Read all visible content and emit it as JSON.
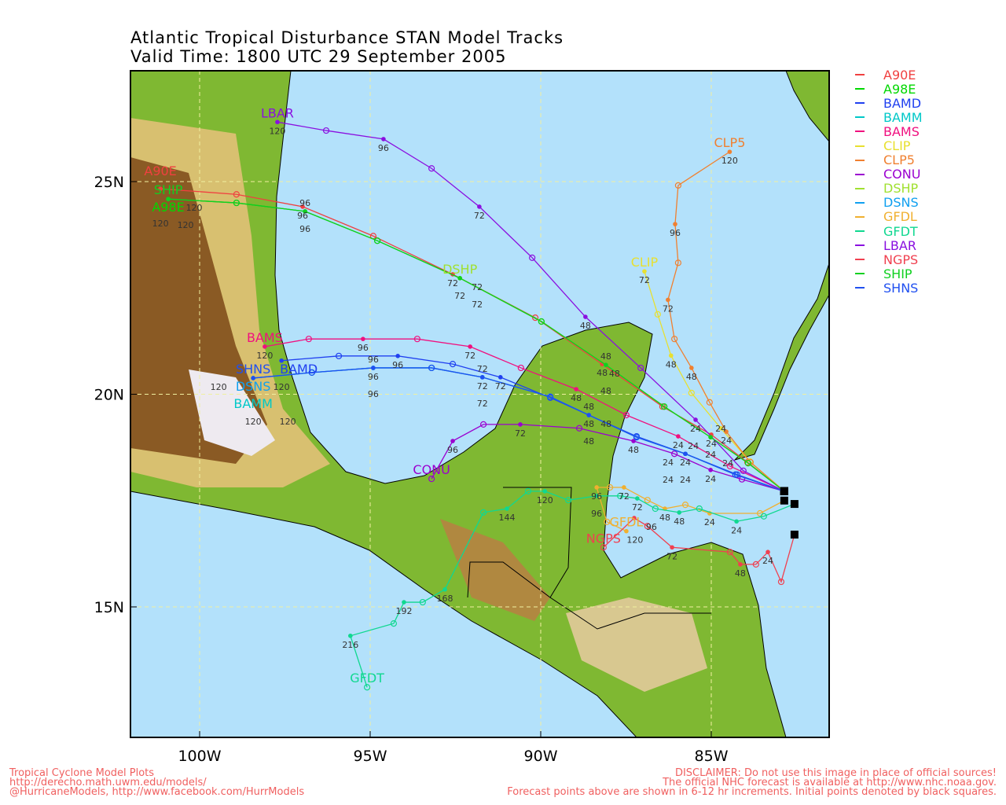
{
  "title": {
    "line1": "Atlantic Tropical Disturbance STAN Model Tracks",
    "line2": "Valid Time: 1800 UTC 29 September 2005"
  },
  "axes": {
    "lon_range_w": [
      102,
      81.5
    ],
    "lat_range_n": [
      12,
      27.6
    ],
    "lon_ticks": [
      {
        "value": 100,
        "label": "100W"
      },
      {
        "value": 95,
        "label": "95W"
      },
      {
        "value": 90,
        "label": "90W"
      },
      {
        "value": 85,
        "label": "85W"
      }
    ],
    "lat_ticks": [
      {
        "value": 25,
        "label": "25N"
      },
      {
        "value": 20,
        "label": "20N"
      },
      {
        "value": 15,
        "label": "15N"
      }
    ],
    "grid": true
  },
  "colors": {
    "ocean": "#b3e1fb",
    "land_low": "#7fb832",
    "land_mid": "#c8d88a",
    "land_high": "#8a5a24",
    "peak": "#eeeaf0",
    "grid": "#f0f0a0"
  },
  "tracks": [
    {
      "name": "A90E",
      "color": "#f04040",
      "points": [
        [
          82.86,
          17.72
        ],
        [
          83.94,
          18.4
        ],
        [
          85.0,
          19.05
        ],
        [
          86.43,
          19.71
        ],
        [
          88.2,
          20.71
        ],
        [
          90.16,
          21.8
        ],
        [
          92.58,
          22.82
        ],
        [
          94.91,
          23.72
        ],
        [
          96.98,
          24.41
        ],
        [
          98.92,
          24.7
        ],
        [
          101.15,
          24.83
        ]
      ]
    },
    {
      "name": "A98E",
      "color": "#00d800",
      "points": [
        [
          82.86,
          17.72
        ],
        [
          83.92,
          18.38
        ],
        [
          85.02,
          18.99
        ],
        [
          86.38,
          19.71
        ],
        [
          88.09,
          20.69
        ],
        [
          89.98,
          21.71
        ],
        [
          92.37,
          22.73
        ],
        [
          94.79,
          23.61
        ],
        [
          96.91,
          24.3
        ],
        [
          98.92,
          24.5
        ],
        [
          100.92,
          24.59
        ]
      ]
    },
    {
      "name": "BAMD",
      "color": "#2040f0",
      "points": [
        [
          82.86,
          17.72
        ],
        [
          84.24,
          18.11
        ],
        [
          85.76,
          18.6
        ],
        [
          87.19,
          19.01
        ],
        [
          88.59,
          19.51
        ],
        [
          89.72,
          19.92
        ],
        [
          91.18,
          20.4
        ],
        [
          92.58,
          20.71
        ],
        [
          94.19,
          20.9
        ],
        [
          95.92,
          20.9
        ],
        [
          97.6,
          20.79
        ]
      ]
    },
    {
      "name": "BAMM",
      "color": "#00c8c8",
      "points": [
        [
          82.86,
          17.72
        ],
        [
          84.29,
          18.11
        ],
        [
          85.76,
          18.6
        ],
        [
          87.19,
          18.99
        ],
        [
          88.59,
          19.51
        ],
        [
          89.72,
          19.94
        ],
        [
          91.71,
          20.4
        ],
        [
          93.2,
          20.62
        ],
        [
          94.91,
          20.62
        ],
        [
          96.71,
          20.51
        ],
        [
          98.43,
          20.38
        ]
      ]
    },
    {
      "name": "BAMS",
      "color": "#f0107f",
      "points": [
        [
          82.86,
          17.72
        ],
        [
          84.45,
          18.31
        ],
        [
          85.97,
          19.01
        ],
        [
          87.49,
          19.51
        ],
        [
          88.96,
          20.12
        ],
        [
          90.58,
          20.62
        ],
        [
          92.07,
          21.12
        ],
        [
          93.62,
          21.3
        ],
        [
          95.21,
          21.3
        ],
        [
          96.8,
          21.3
        ],
        [
          98.09,
          21.12
        ]
      ]
    },
    {
      "name": "CLIP",
      "color": "#e8e030",
      "points": [
        [
          82.86,
          17.72
        ],
        [
          83.87,
          18.42
        ],
        [
          84.72,
          19.2
        ],
        [
          85.58,
          20.03
        ],
        [
          86.18,
          20.91
        ],
        [
          86.57,
          21.88
        ],
        [
          86.96,
          22.89
        ]
      ]
    },
    {
      "name": "CLP5",
      "color": "#f08030",
      "points": [
        [
          82.86,
          17.72
        ],
        [
          83.85,
          18.4
        ],
        [
          84.56,
          19.12
        ],
        [
          85.05,
          19.81
        ],
        [
          85.58,
          20.62
        ],
        [
          86.08,
          21.3
        ],
        [
          86.27,
          22.22
        ],
        [
          85.97,
          23.09
        ],
        [
          86.06,
          24.0
        ],
        [
          85.97,
          24.91
        ],
        [
          84.46,
          25.7
        ]
      ]
    },
    {
      "name": "CONU",
      "color": "#9b00d0",
      "points": [
        [
          82.86,
          17.72
        ],
        [
          84.1,
          18.0
        ],
        [
          85.02,
          18.22
        ],
        [
          86.08,
          18.6
        ],
        [
          87.28,
          18.9
        ],
        [
          88.87,
          19.2
        ],
        [
          90.6,
          19.29
        ],
        [
          91.68,
          19.29
        ],
        [
          92.58,
          18.9
        ],
        [
          93.2,
          18.01
        ]
      ]
    },
    {
      "name": "DSHP",
      "color": "#a0e030",
      "points": [
        [
          82.86,
          17.72
        ],
        [
          83.92,
          18.38
        ],
        [
          85.02,
          18.99
        ],
        [
          86.38,
          19.71
        ],
        [
          88.09,
          20.69
        ],
        [
          89.98,
          21.71
        ],
        [
          92.37,
          22.73
        ]
      ]
    },
    {
      "name": "DSNS",
      "color": "#10a0f0",
      "points": [
        [
          82.86,
          17.72
        ],
        [
          84.29,
          18.11
        ],
        [
          85.76,
          18.6
        ],
        [
          87.19,
          18.99
        ],
        [
          88.59,
          19.51
        ],
        [
          89.72,
          19.94
        ],
        [
          91.71,
          20.4
        ],
        [
          93.2,
          20.62
        ],
        [
          94.91,
          20.62
        ],
        [
          96.71,
          20.51
        ],
        [
          98.43,
          20.38
        ]
      ]
    },
    {
      "name": "GFDL",
      "color": "#f0b030",
      "points": [
        [
          82.86,
          17.5
        ],
        [
          83.57,
          17.2
        ],
        [
          85.05,
          17.2
        ],
        [
          85.76,
          17.4
        ],
        [
          86.36,
          17.31
        ],
        [
          86.87,
          17.51
        ],
        [
          87.56,
          17.81
        ],
        [
          87.97,
          17.81
        ],
        [
          88.36,
          17.81
        ],
        [
          88.06,
          17.0
        ],
        [
          87.49,
          16.78
        ]
      ]
    },
    {
      "name": "GFDT",
      "color": "#10d890",
      "points": [
        [
          82.56,
          17.42
        ],
        [
          83.46,
          17.13
        ],
        [
          84.26,
          17.01
        ],
        [
          85.35,
          17.31
        ],
        [
          85.94,
          17.22
        ],
        [
          86.64,
          17.31
        ],
        [
          87.17,
          17.55
        ],
        [
          87.67,
          17.61
        ],
        [
          88.36,
          17.61
        ],
        [
          89.19,
          17.51
        ],
        [
          89.88,
          17.72
        ],
        [
          90.37,
          17.72
        ],
        [
          90.99,
          17.31
        ],
        [
          91.68,
          17.22
        ],
        [
          92.81,
          15.41
        ],
        [
          93.46,
          15.11
        ],
        [
          94.01,
          15.11
        ],
        [
          94.31,
          14.61
        ],
        [
          95.58,
          14.32
        ],
        [
          95.09,
          13.11
        ]
      ]
    },
    {
      "name": "LBAR",
      "color": "#8a10e0",
      "points": [
        [
          82.86,
          17.72
        ],
        [
          84.06,
          18.2
        ],
        [
          85.46,
          19.4
        ],
        [
          87.07,
          20.62
        ],
        [
          88.69,
          21.82
        ],
        [
          90.25,
          23.21
        ],
        [
          91.8,
          24.41
        ],
        [
          93.2,
          25.31
        ],
        [
          94.61,
          26.0
        ],
        [
          96.29,
          26.2
        ],
        [
          97.72,
          26.4
        ]
      ]
    },
    {
      "name": "NGPS",
      "color": "#f04050",
      "points": [
        [
          82.56,
          16.7
        ],
        [
          82.95,
          15.59
        ],
        [
          83.34,
          16.29
        ],
        [
          83.69,
          16.0
        ],
        [
          84.15,
          16.0
        ],
        [
          84.45,
          16.29
        ],
        [
          86.15,
          16.4
        ],
        [
          86.87,
          16.9
        ],
        [
          87.26,
          17.09
        ],
        [
          88.16,
          16.4
        ]
      ]
    },
    {
      "name": "SHIP",
      "color": "#10d020",
      "points": [
        [
          82.86,
          17.72
        ],
        [
          83.92,
          18.38
        ],
        [
          85.02,
          18.99
        ],
        [
          86.38,
          19.71
        ],
        [
          88.09,
          20.69
        ],
        [
          89.98,
          21.71
        ],
        [
          92.37,
          22.73
        ],
        [
          94.79,
          23.61
        ],
        [
          96.91,
          24.3
        ],
        [
          98.92,
          24.5
        ],
        [
          100.92,
          24.59
        ]
      ]
    },
    {
      "name": "SHNS",
      "color": "#2050f0",
      "points": [
        [
          82.86,
          17.72
        ],
        [
          84.29,
          18.11
        ],
        [
          85.76,
          18.6
        ],
        [
          87.19,
          18.99
        ],
        [
          88.59,
          19.51
        ],
        [
          89.72,
          19.94
        ],
        [
          91.71,
          20.4
        ],
        [
          93.2,
          20.62
        ],
        [
          94.91,
          20.62
        ],
        [
          96.71,
          20.51
        ],
        [
          98.43,
          20.38
        ]
      ]
    }
  ],
  "footer": {
    "left1": "Tropical Cyclone Model Plots",
    "left2": "http://derecho.math.uwm.edu/models/",
    "left3": "@HurricaneModels, http://www.facebook.com/HurrModels",
    "right1": "DISCLAIMER: Do not use this image in place of official sources!",
    "right2": "The official NHC forecast is available at http://www.nhc.noaa.gov.",
    "right3": "Forecast points above are shown in 6-12 hr increments. Initial points denoted by black squares."
  }
}
